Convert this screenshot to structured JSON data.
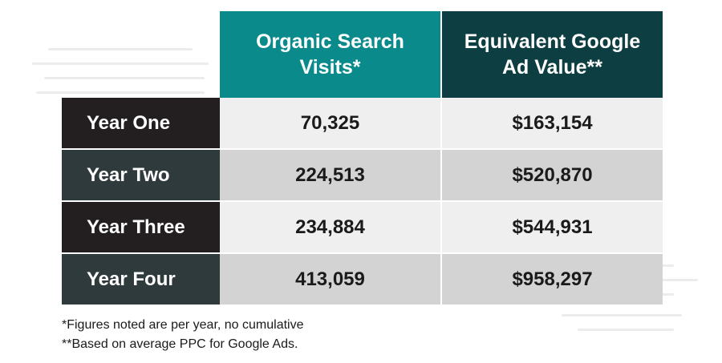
{
  "colors": {
    "organic_header": "#0b8a8c",
    "ad_value_header": "#0d3e42",
    "label_dark": "#231f20",
    "label_slate": "#2f3a3c",
    "row_light": "#efefef",
    "row_gray": "#d3d3d3"
  },
  "chart_data": {
    "type": "table",
    "columns": [
      "Organic Search Visits*",
      "Equivalent Google Ad Value**"
    ],
    "rows": [
      {
        "label": "Year One",
        "organic_visits": "70,325",
        "ad_value": "$163,154"
      },
      {
        "label": "Year Two",
        "organic_visits": "224,513",
        "ad_value": "$520,870"
      },
      {
        "label": "Year Three",
        "organic_visits": "234,884",
        "ad_value": "$544,931"
      },
      {
        "label": "Year Four",
        "organic_visits": "413,059",
        "ad_value": "$958,297"
      }
    ],
    "footnotes": [
      "*Figures noted are per year, no cumulative",
      "**Based on average PPC for Google Ads."
    ]
  }
}
